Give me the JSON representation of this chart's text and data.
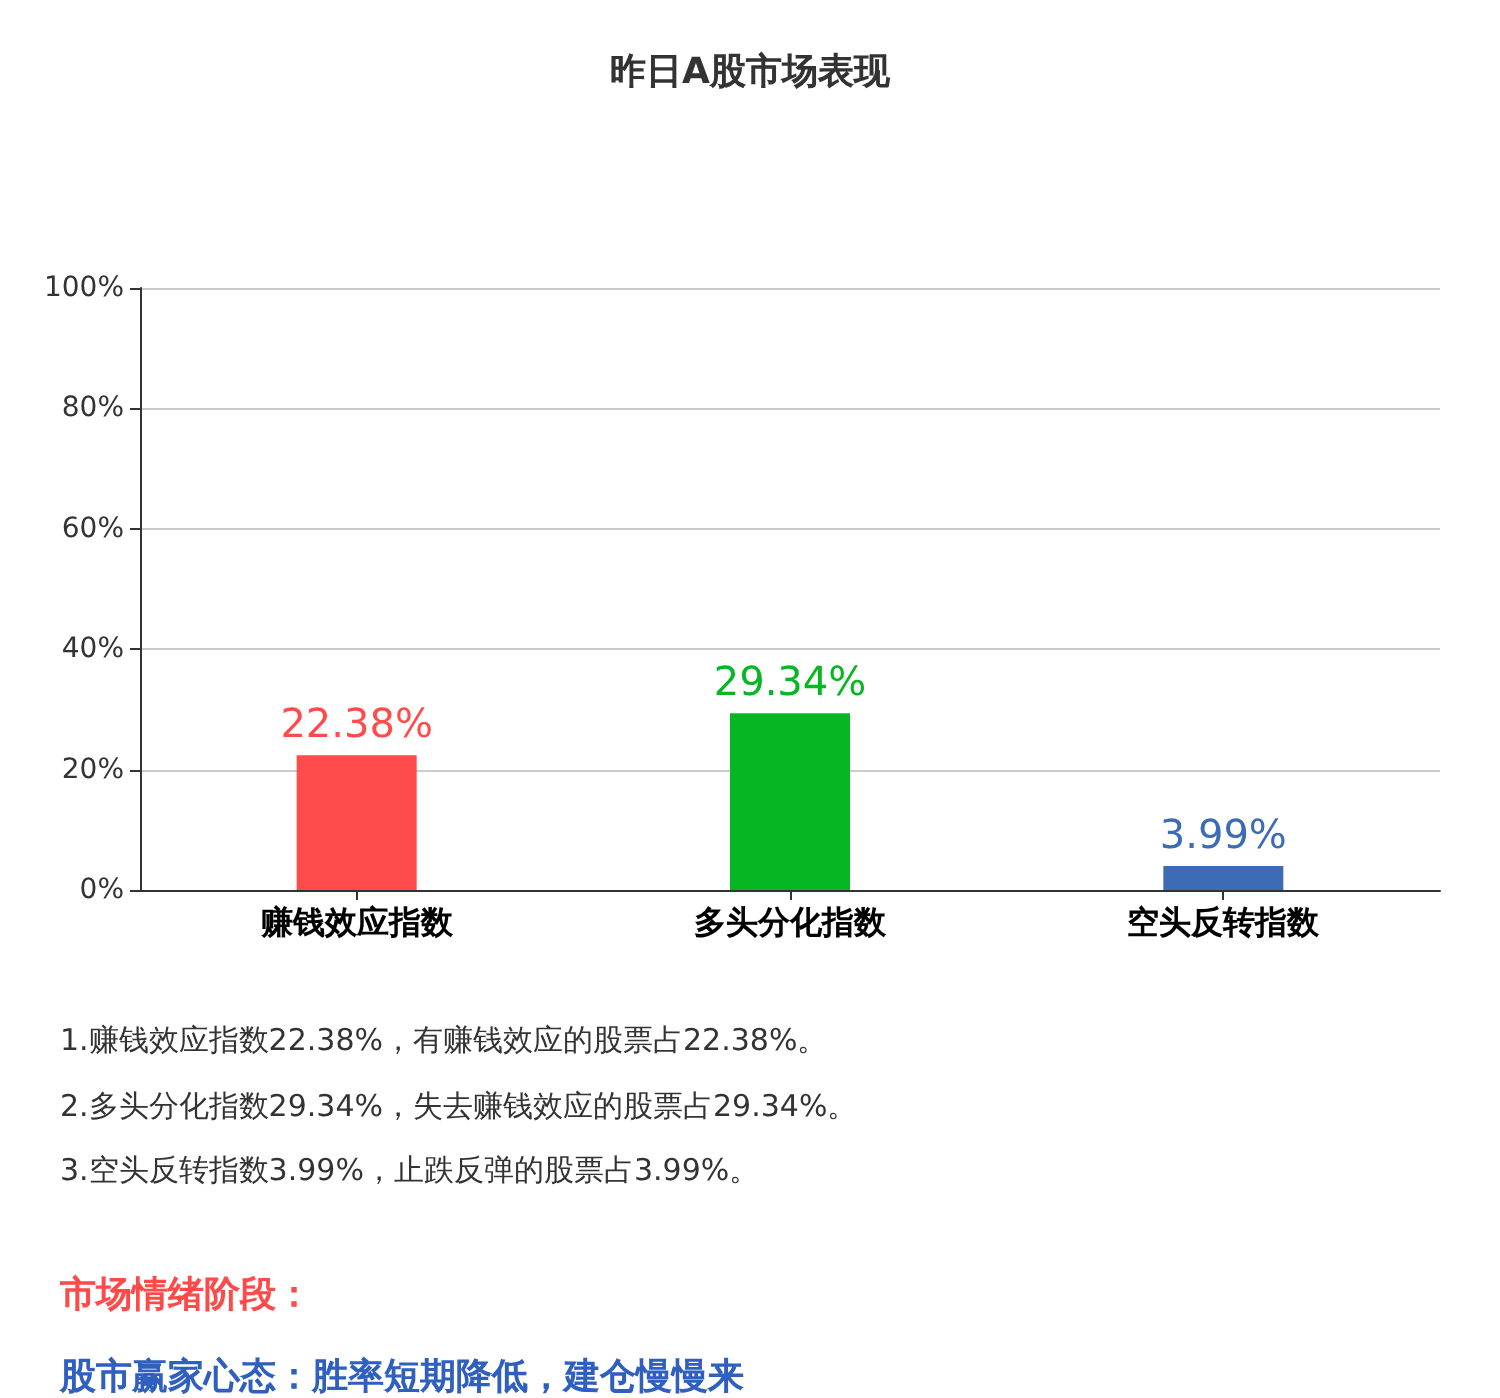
{
  "chart_data": {
    "type": "bar",
    "title": "昨日A股市场表现",
    "categories": [
      "赚钱效应指数",
      "多头分化指数",
      "空头反转指数"
    ],
    "values": [
      22.38,
      29.34,
      3.99
    ],
    "colors": [
      "#ff4b4b",
      "#06b623",
      "#3d6cb6"
    ],
    "value_labels": [
      "22.38%",
      "29.34%",
      "3.99%"
    ],
    "ylim": [
      0,
      100
    ],
    "yticks": [
      {
        "value": 0,
        "label": "0%"
      },
      {
        "value": 20,
        "label": "20%"
      },
      {
        "value": 40,
        "label": "40%"
      },
      {
        "value": 60,
        "label": "60%"
      },
      {
        "value": 80,
        "label": "80%"
      },
      {
        "value": 100,
        "label": "100%"
      }
    ],
    "grid": "y",
    "annotations": [
      "1.赚钱效应指数22.38%，有赚钱效应的股票占22.38%。",
      "2.多头分化指数29.34%，失去赚钱效应的股票占29.34%。",
      "3.空头反转指数3.99%，止跌反弹的股票占3.99%。",
      "市场情绪阶段：",
      "股市赢家心态：胜率短期降低，建仓慢慢来"
    ]
  }
}
